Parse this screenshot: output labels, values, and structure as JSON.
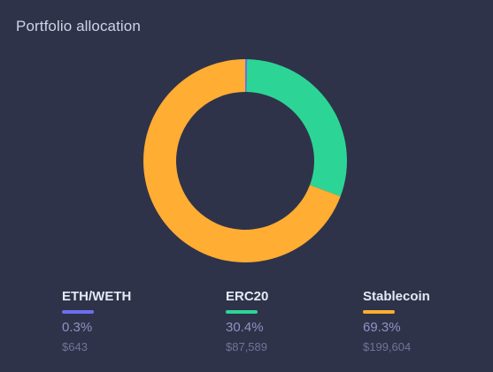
{
  "widget": {
    "title": "Portfolio allocation"
  },
  "chart_data": {
    "type": "pie",
    "style": "donut",
    "categories": [
      "ETH/WETH",
      "ERC20",
      "Stablecoin"
    ],
    "values": [
      0.3,
      30.4,
      69.3
    ],
    "colors": [
      "#6c6ff0",
      "#2cd596",
      "#ffad33"
    ],
    "legend_position": "bottom"
  },
  "legend": [
    {
      "label": "ETH/WETH",
      "percent": "0.3%",
      "amount": "$643",
      "color": "#6c6ff0"
    },
    {
      "label": "ERC20",
      "percent": "30.4%",
      "amount": "$87,589",
      "color": "#2cd596"
    },
    {
      "label": "Stablecoin",
      "percent": "69.3%",
      "amount": "$199,604",
      "color": "#ffad33"
    }
  ]
}
